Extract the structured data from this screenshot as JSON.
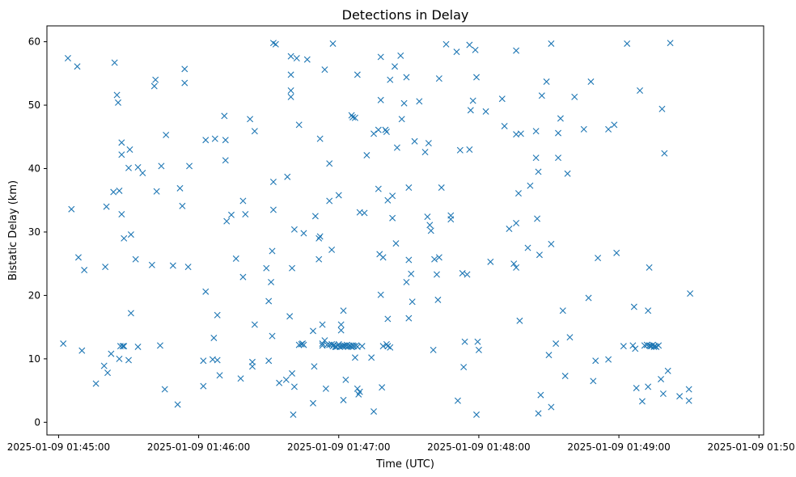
{
  "chart_data": {
    "type": "scatter",
    "title": "Detections in Delay",
    "xlabel": "Time (UTC)",
    "ylabel": "Bistatic Delay (km)",
    "x_unit": "seconds after 2025-01-09 01:45:00",
    "xlim": [
      -5,
      302
    ],
    "ylim": [
      -2,
      62.5
    ],
    "grid": false,
    "marker": "x",
    "color": "#1f77b4",
    "x_ticks": [
      {
        "value": 0,
        "label": "2025-01-09 01:45:00"
      },
      {
        "value": 60,
        "label": "2025-01-09 01:46:00"
      },
      {
        "value": 120,
        "label": "2025-01-09 01:47:00"
      },
      {
        "value": 180,
        "label": "2025-01-09 01:48:00"
      },
      {
        "value": 240,
        "label": "2025-01-09 01:49:00"
      },
      {
        "value": 300,
        "label": "2025-01-09 01:50:00"
      }
    ],
    "y_ticks": [
      {
        "value": 0,
        "label": "0"
      },
      {
        "value": 10,
        "label": "10"
      },
      {
        "value": 20,
        "label": "20"
      },
      {
        "value": 30,
        "label": "30"
      },
      {
        "value": 40,
        "label": "40"
      },
      {
        "value": 50,
        "label": "50"
      },
      {
        "value": 60,
        "label": "60"
      }
    ],
    "points": [
      [
        2,
        12.4
      ],
      [
        4,
        57.4
      ],
      [
        5.5,
        33.6
      ],
      [
        8,
        56.1
      ],
      [
        8.5,
        26
      ],
      [
        10,
        11.3
      ],
      [
        11,
        24
      ],
      [
        16,
        6.1
      ],
      [
        19.5,
        8.9
      ],
      [
        20,
        24.5
      ],
      [
        20.5,
        34
      ],
      [
        21,
        7.8
      ],
      [
        22.5,
        10.8
      ],
      [
        23.5,
        36.3
      ],
      [
        24,
        56.7
      ],
      [
        25,
        51.6
      ],
      [
        25.5,
        50.4
      ],
      [
        26,
        36.5
      ],
      [
        26,
        10
      ],
      [
        26.5,
        12
      ],
      [
        27,
        44.1
      ],
      [
        27,
        42.2
      ],
      [
        27,
        32.8
      ],
      [
        27.5,
        12
      ],
      [
        28,
        29
      ],
      [
        28,
        12
      ],
      [
        30,
        40.1
      ],
      [
        30.5,
        43
      ],
      [
        31,
        29.6
      ],
      [
        30,
        9.8
      ],
      [
        31,
        17.2
      ],
      [
        33,
        25.7
      ],
      [
        34,
        40.2
      ],
      [
        34,
        11.9
      ],
      [
        36,
        39.3
      ],
      [
        40,
        24.8
      ],
      [
        41,
        53
      ],
      [
        41.5,
        54
      ],
      [
        42,
        36.4
      ],
      [
        43.5,
        12.1
      ],
      [
        44,
        40.4
      ],
      [
        45.5,
        5.2
      ],
      [
        46,
        45.3
      ],
      [
        49,
        24.7
      ],
      [
        51,
        2.8
      ],
      [
        52,
        36.9
      ],
      [
        53,
        34.1
      ],
      [
        54,
        53.5
      ],
      [
        54,
        55.7
      ],
      [
        55.5,
        24.5
      ],
      [
        56,
        40.4
      ],
      [
        62,
        5.7
      ],
      [
        62,
        9.7
      ],
      [
        63,
        20.6
      ],
      [
        63,
        44.5
      ],
      [
        66,
        9.9
      ],
      [
        66.5,
        13.3
      ],
      [
        67,
        44.7
      ],
      [
        68,
        9.8
      ],
      [
        68,
        16.9
      ],
      [
        69,
        7.4
      ],
      [
        71,
        48.3
      ],
      [
        71.5,
        41.3
      ],
      [
        71.5,
        44.5
      ],
      [
        72,
        31.7
      ],
      [
        74,
        32.7
      ],
      [
        76,
        25.8
      ],
      [
        78,
        6.9
      ],
      [
        79,
        22.9
      ],
      [
        79,
        34.9
      ],
      [
        80,
        32.8
      ],
      [
        82,
        47.8
      ],
      [
        83,
        9.5
      ],
      [
        83,
        8.8
      ],
      [
        84,
        45.9
      ],
      [
        84,
        15.4
      ],
      [
        89,
        24.3
      ],
      [
        90,
        9.7
      ],
      [
        90,
        19.1
      ],
      [
        91,
        22.1
      ],
      [
        91.5,
        13.6
      ],
      [
        91.5,
        27
      ],
      [
        92,
        33.5
      ],
      [
        92,
        37.9
      ],
      [
        92,
        59.8
      ],
      [
        93,
        59.6
      ],
      [
        94.5,
        6.2
      ],
      [
        97.5,
        6.7
      ],
      [
        98,
        38.7
      ],
      [
        99,
        16.7
      ],
      [
        99.5,
        51.3
      ],
      [
        99.5,
        52.3
      ],
      [
        99.5,
        54.8
      ],
      [
        99.5,
        57.7
      ],
      [
        100,
        24.3
      ],
      [
        100,
        7.7
      ],
      [
        100.5,
        1.2
      ],
      [
        101,
        5.6
      ],
      [
        101,
        30.4
      ],
      [
        102,
        57.4
      ],
      [
        103,
        46.9
      ],
      [
        103,
        12.2
      ],
      [
        104,
        12.3
      ],
      [
        104.5,
        12.4
      ],
      [
        105,
        29.8
      ],
      [
        105,
        12.2
      ],
      [
        106.5,
        57.2
      ],
      [
        109,
        14.4
      ],
      [
        109,
        3
      ],
      [
        109.5,
        8.8
      ],
      [
        110,
        32.5
      ],
      [
        111.5,
        25.7
      ],
      [
        111.5,
        29
      ],
      [
        112,
        44.7
      ],
      [
        112,
        29.3
      ],
      [
        113,
        12.4
      ],
      [
        113,
        15.4
      ],
      [
        113,
        12.1
      ],
      [
        114,
        55.6
      ],
      [
        114,
        12.9
      ],
      [
        114.5,
        5.3
      ],
      [
        115,
        12.2
      ],
      [
        116,
        40.8
      ],
      [
        116,
        12.2
      ],
      [
        116,
        34.9
      ],
      [
        117,
        27.2
      ],
      [
        117,
        12.3
      ],
      [
        117.5,
        12
      ],
      [
        117.5,
        59.7
      ],
      [
        118,
        12.2
      ],
      [
        118.5,
        11.9
      ],
      [
        119,
        11.9
      ],
      [
        119.5,
        12.1
      ],
      [
        120,
        35.8
      ],
      [
        120,
        12.3
      ],
      [
        120.5,
        11.9
      ],
      [
        121,
        14.5
      ],
      [
        121,
        15.4
      ],
      [
        121.5,
        12
      ],
      [
        122,
        3.5
      ],
      [
        122,
        17.6
      ],
      [
        122,
        12
      ],
      [
        122.5,
        12.1
      ],
      [
        123,
        6.7
      ],
      [
        123,
        12
      ],
      [
        123.5,
        12.2
      ],
      [
        124,
        11.9
      ],
      [
        124.5,
        12.1
      ],
      [
        125,
        12
      ],
      [
        125.5,
        48.4
      ],
      [
        125.5,
        11.9
      ],
      [
        126,
        12.1
      ],
      [
        126,
        48.1
      ],
      [
        126.5,
        12
      ],
      [
        127,
        10.2
      ],
      [
        127,
        48
      ],
      [
        127.5,
        12.1
      ],
      [
        128,
        11.9
      ],
      [
        128,
        54.8
      ],
      [
        128,
        5.3
      ],
      [
        128.5,
        4.4
      ],
      [
        129,
        33.1
      ],
      [
        129,
        4.8
      ],
      [
        130,
        12
      ],
      [
        131,
        33
      ],
      [
        132,
        42.1
      ],
      [
        134,
        10.2
      ],
      [
        135,
        45.5
      ],
      [
        135,
        1.7
      ],
      [
        137,
        46.1
      ],
      [
        137,
        36.8
      ],
      [
        137.5,
        26.5
      ],
      [
        138,
        57.6
      ],
      [
        138,
        50.8
      ],
      [
        138,
        20.1
      ],
      [
        138.5,
        5.5
      ],
      [
        139,
        26
      ],
      [
        139,
        12
      ],
      [
        140.5,
        12.3
      ],
      [
        140,
        46.1
      ],
      [
        140.5,
        45.8
      ],
      [
        141,
        16.3
      ],
      [
        141,
        12
      ],
      [
        141,
        35
      ],
      [
        142,
        54
      ],
      [
        142,
        11.8
      ],
      [
        143,
        32.2
      ],
      [
        143,
        35.7
      ],
      [
        144,
        56.1
      ],
      [
        144.5,
        28.2
      ],
      [
        145,
        43.3
      ],
      [
        146.5,
        57.8
      ],
      [
        147,
        47.8
      ],
      [
        148,
        50.3
      ],
      [
        149,
        54.4
      ],
      [
        149,
        22.1
      ],
      [
        150,
        16.4
      ],
      [
        150,
        25.6
      ],
      [
        150,
        37
      ],
      [
        151,
        23.4
      ],
      [
        151.5,
        19
      ],
      [
        152.5,
        44.3
      ],
      [
        154.5,
        50.6
      ],
      [
        157,
        42.6
      ],
      [
        158,
        32.4
      ],
      [
        158.5,
        44
      ],
      [
        159,
        31.1
      ],
      [
        159.5,
        30.2
      ],
      [
        160.5,
        11.4
      ],
      [
        161,
        25.7
      ],
      [
        162,
        23.3
      ],
      [
        162.5,
        19.3
      ],
      [
        163,
        26
      ],
      [
        163,
        54.2
      ],
      [
        164,
        37
      ],
      [
        166,
        59.6
      ],
      [
        168,
        32.6
      ],
      [
        168,
        32
      ],
      [
        170.5,
        58.4
      ],
      [
        171,
        3.4
      ],
      [
        172,
        42.9
      ],
      [
        173,
        23.5
      ],
      [
        173.5,
        8.7
      ],
      [
        174,
        12.7
      ],
      [
        175,
        23.3
      ],
      [
        176,
        59.5
      ],
      [
        176,
        43
      ],
      [
        176.5,
        49.2
      ],
      [
        177.5,
        50.7
      ],
      [
        178.5,
        58.7
      ],
      [
        179,
        54.4
      ],
      [
        179.5,
        12.7
      ],
      [
        180,
        11.4
      ],
      [
        179,
        1.2
      ],
      [
        183,
        49
      ],
      [
        185,
        25.3
      ],
      [
        190,
        51
      ],
      [
        191,
        46.7
      ],
      [
        193,
        30.5
      ],
      [
        195,
        25
      ],
      [
        196,
        24.4
      ],
      [
        196,
        58.6
      ],
      [
        196,
        45.4
      ],
      [
        196,
        31.4
      ],
      [
        197,
        36.1
      ],
      [
        197.5,
        16
      ],
      [
        198,
        45.5
      ],
      [
        201,
        27.5
      ],
      [
        202,
        37.3
      ],
      [
        204.5,
        45.9
      ],
      [
        204.5,
        41.7
      ],
      [
        205,
        32.1
      ],
      [
        205.5,
        1.4
      ],
      [
        205.5,
        39.5
      ],
      [
        206,
        26.4
      ],
      [
        206.5,
        4.3
      ],
      [
        207,
        51.5
      ],
      [
        209,
        53.7
      ],
      [
        210,
        10.6
      ],
      [
        211,
        28.1
      ],
      [
        211,
        59.7
      ],
      [
        211,
        2.4
      ],
      [
        213,
        12.4
      ],
      [
        214,
        45.6
      ],
      [
        214,
        41.7
      ],
      [
        215,
        47.9
      ],
      [
        216,
        17.6
      ],
      [
        217,
        7.3
      ],
      [
        218,
        39.2
      ],
      [
        219,
        13.4
      ],
      [
        221,
        51.3
      ],
      [
        225,
        46.2
      ],
      [
        227,
        19.6
      ],
      [
        228,
        53.7
      ],
      [
        229,
        6.5
      ],
      [
        230,
        9.7
      ],
      [
        231,
        25.9
      ],
      [
        235.5,
        9.9
      ],
      [
        235.5,
        46.2
      ],
      [
        238,
        46.9
      ],
      [
        239,
        26.7
      ],
      [
        242,
        12
      ],
      [
        243.5,
        59.7
      ],
      [
        246,
        12.1
      ],
      [
        246.5,
        18.2
      ],
      [
        247,
        11.6
      ],
      [
        247.5,
        5.4
      ],
      [
        249,
        52.3
      ],
      [
        250,
        3.3
      ],
      [
        251,
        12.1
      ],
      [
        252,
        12.2
      ],
      [
        252.5,
        5.6
      ],
      [
        252.5,
        17.6
      ],
      [
        253,
        24.4
      ],
      [
        253,
        12.1
      ],
      [
        253.5,
        12
      ],
      [
        254,
        12
      ],
      [
        254.5,
        12.2
      ],
      [
        255,
        11.9
      ],
      [
        255.5,
        12
      ],
      [
        256,
        11.9
      ],
      [
        257,
        12.1
      ],
      [
        258,
        6.8
      ],
      [
        258.5,
        49.4
      ],
      [
        259,
        4.5
      ],
      [
        259.5,
        42.4
      ],
      [
        261,
        8.1
      ],
      [
        262,
        59.8
      ],
      [
        266,
        4.1
      ],
      [
        270,
        3.4
      ],
      [
        270,
        5.2
      ],
      [
        270.5,
        20.3
      ]
    ]
  }
}
